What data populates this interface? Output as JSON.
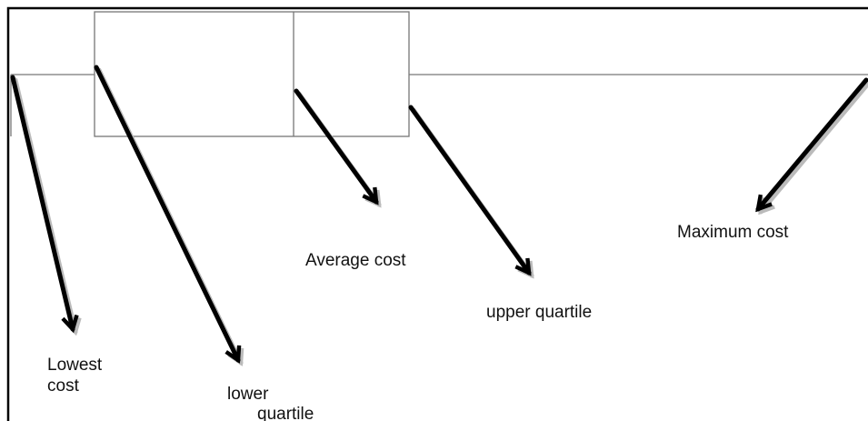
{
  "labels": [
    {
      "lines": [
        "Lowest",
        "cost"
      ]
    },
    {
      "lines": [
        "lower",
        "quartile"
      ]
    },
    {
      "lines": [
        "Average cost"
      ]
    },
    {
      "lines": [
        "upper quartile"
      ]
    },
    {
      "lines": [
        "Maximum cost"
      ]
    }
  ]
}
